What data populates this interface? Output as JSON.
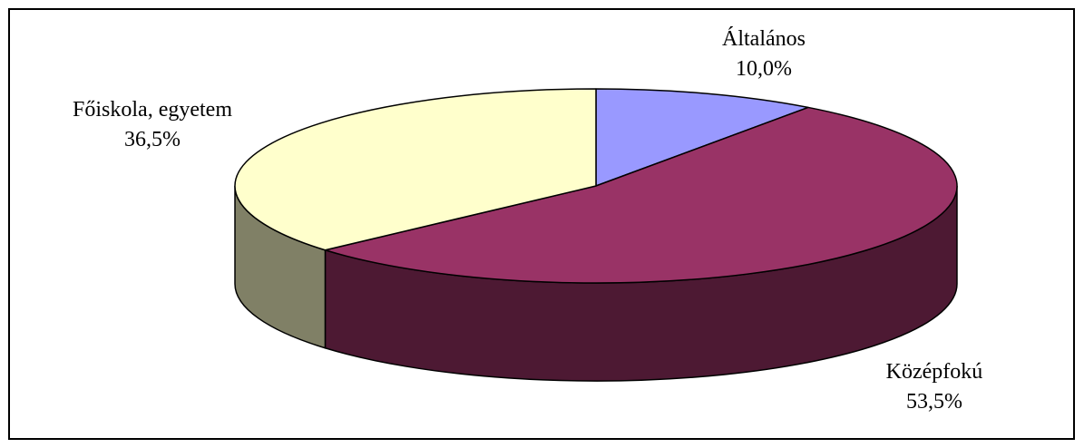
{
  "chart_data": {
    "type": "pie",
    "style": "3d",
    "title": "",
    "categories": [
      "Általános",
      "Középfokú",
      "Főiskola, egyetem"
    ],
    "values": [
      10.0,
      53.5,
      36.5
    ],
    "value_labels": [
      "10,0%",
      "53,5%",
      "36,5%"
    ],
    "colors": [
      "#9999ff",
      "#993366",
      "#ffffcc"
    ],
    "side_colors": [
      "#4d4d80",
      "#4d1933",
      "#808066"
    ],
    "legend": "none"
  }
}
